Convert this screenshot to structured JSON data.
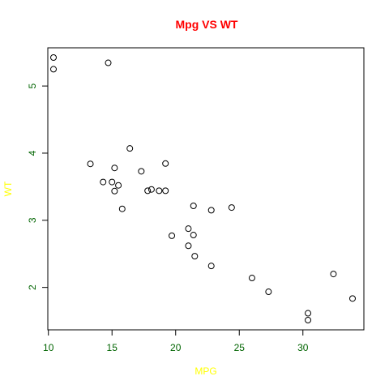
{
  "chart_data": {
    "type": "scatter",
    "title": "Mpg VS WT",
    "xlabel": "MPG",
    "ylabel": "WT",
    "xlim": [
      10.4,
      33.9
    ],
    "ylim": [
      1.513,
      5.424
    ],
    "x_ticks": [
      10,
      15,
      20,
      25,
      30
    ],
    "y_ticks": [
      2,
      3,
      4,
      5
    ],
    "grid": false,
    "colors": {
      "title": "#ff0000",
      "axis_labels": "#ffff00",
      "tick_labels": "#006400",
      "points": "#000000"
    },
    "series": [
      {
        "points": [
          [
            21.0,
            2.62
          ],
          [
            21.0,
            2.875
          ],
          [
            22.8,
            2.32
          ],
          [
            21.4,
            3.215
          ],
          [
            18.7,
            3.44
          ],
          [
            18.1,
            3.46
          ],
          [
            14.3,
            3.57
          ],
          [
            24.4,
            3.19
          ],
          [
            22.8,
            3.15
          ],
          [
            19.2,
            3.44
          ],
          [
            17.8,
            3.44
          ],
          [
            16.4,
            4.07
          ],
          [
            17.3,
            3.73
          ],
          [
            15.2,
            3.78
          ],
          [
            10.4,
            5.25
          ],
          [
            10.4,
            5.424
          ],
          [
            14.7,
            5.345
          ],
          [
            32.4,
            2.2
          ],
          [
            30.4,
            1.615
          ],
          [
            33.9,
            1.835
          ],
          [
            21.5,
            2.465
          ],
          [
            15.5,
            3.52
          ],
          [
            15.2,
            3.435
          ],
          [
            13.3,
            3.84
          ],
          [
            19.2,
            3.845
          ],
          [
            27.3,
            1.935
          ],
          [
            26.0,
            2.14
          ],
          [
            30.4,
            1.513
          ],
          [
            15.8,
            3.17
          ],
          [
            19.7,
            2.77
          ],
          [
            15.0,
            3.57
          ],
          [
            21.4,
            2.78
          ]
        ]
      }
    ]
  }
}
